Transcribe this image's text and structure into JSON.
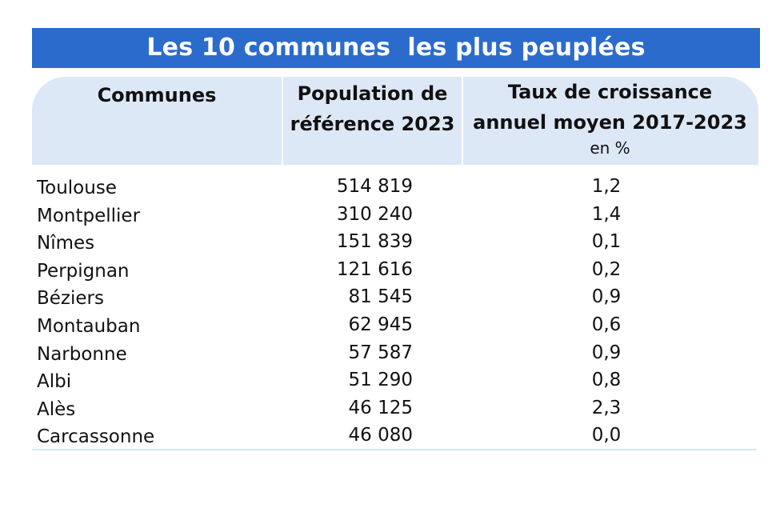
{
  "title": "Les 10 communes  les plus peuplées",
  "headers": {
    "communes": "Communes",
    "population_line1": "Population de",
    "population_line2": "référence 2023",
    "growth_line1": "Taux de croissance",
    "growth_line2": "annuel moyen 2017-2023",
    "growth_unit": "en %"
  },
  "colors": {
    "title_bg": "#2b6bcc",
    "header_bg": "#dde8f6"
  },
  "rows": [
    {
      "commune": "Toulouse",
      "population": "514 819",
      "growth": "1,2"
    },
    {
      "commune": "Montpellier",
      "population": "310 240",
      "growth": "1,4"
    },
    {
      "commune": "Nîmes",
      "population": "151 839",
      "growth": "0,1"
    },
    {
      "commune": "Perpignan",
      "population": "121 616",
      "growth": "0,2"
    },
    {
      "commune": "Béziers",
      "population": "81 545",
      "growth": "0,9"
    },
    {
      "commune": "Montauban",
      "population": "62 945",
      "growth": "0,6"
    },
    {
      "commune": "Narbonne",
      "population": "57 587",
      "growth": "0,9"
    },
    {
      "commune": "Albi",
      "population": "51 290",
      "growth": "0,8"
    },
    {
      "commune": "Alès",
      "population": "46 125",
      "growth": "2,3"
    },
    {
      "commune": "Carcassonne",
      "population": "46 080",
      "growth": "0,0"
    }
  ]
}
